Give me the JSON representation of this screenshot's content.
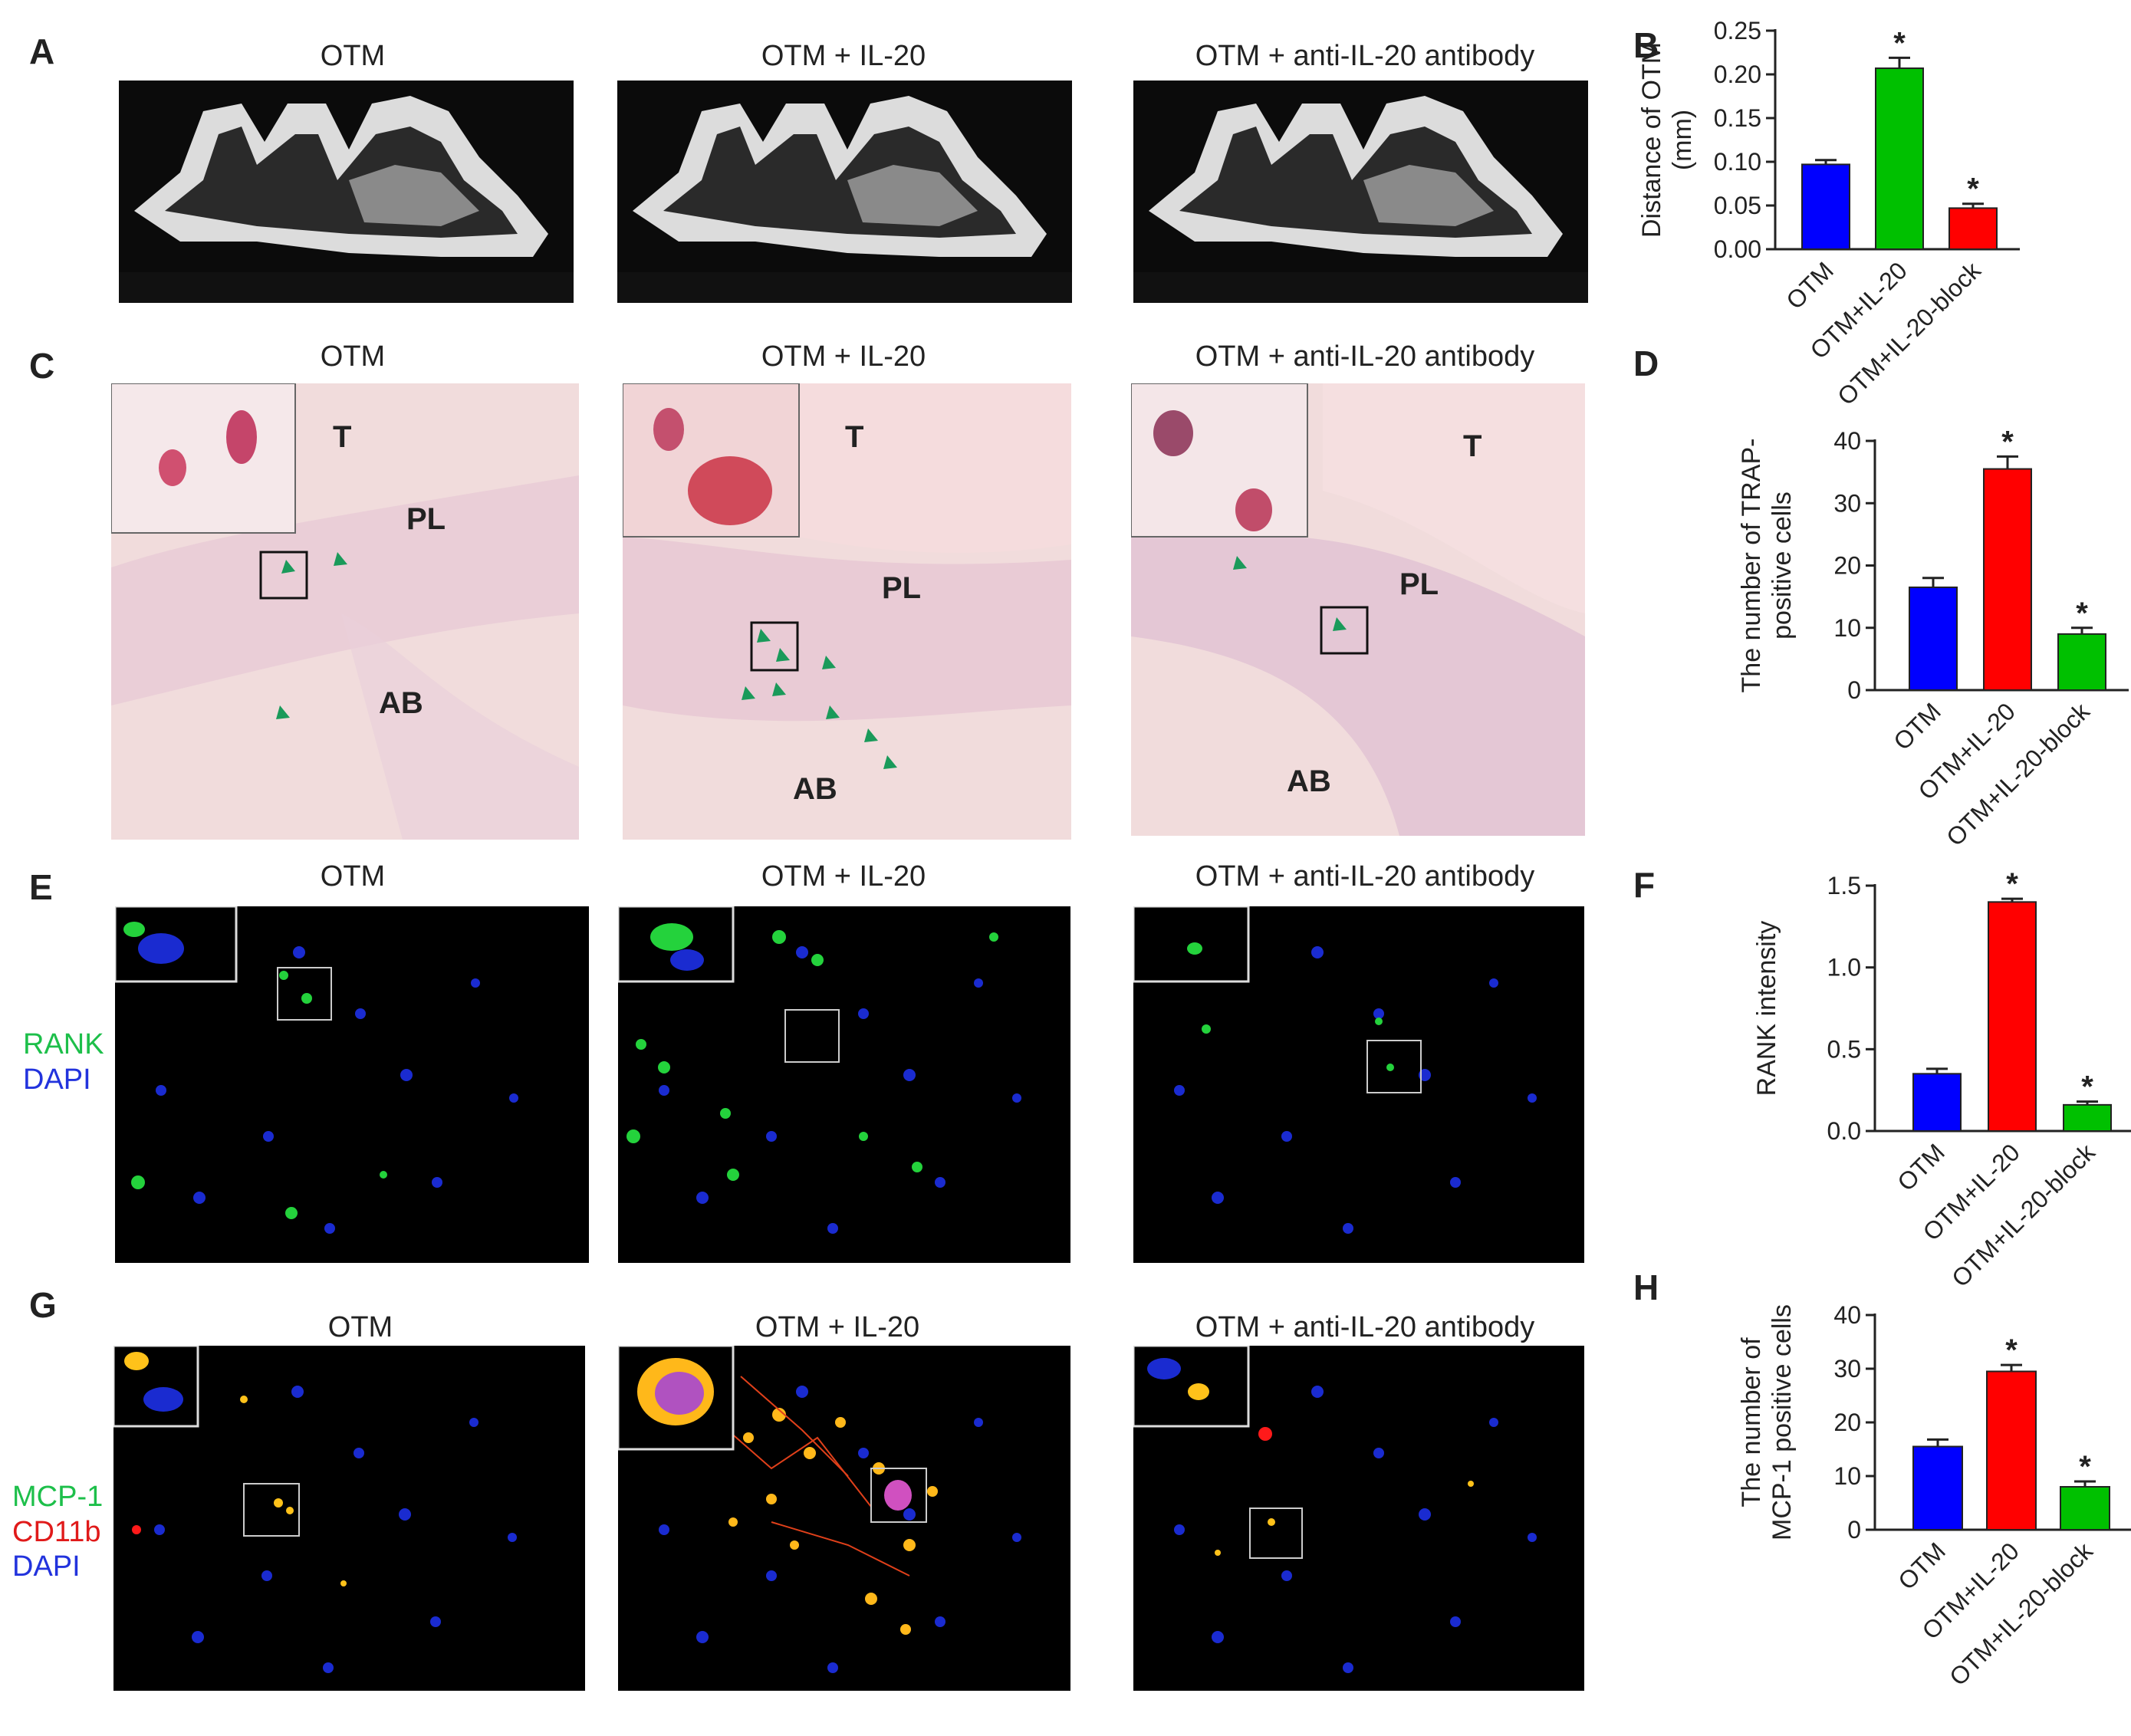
{
  "panels": {
    "A": {
      "letter": "A",
      "titles": [
        "OTM",
        "OTM + IL-20",
        "OTM + anti-IL-20 antibody"
      ]
    },
    "C": {
      "letter": "C",
      "titles": [
        "OTM",
        "OTM + IL-20",
        "OTM + anti-IL-20 antibody"
      ],
      "regions": {
        "t": "T",
        "pl": "PL",
        "ab": "AB"
      }
    },
    "E": {
      "letter": "E",
      "titles": [
        "OTM",
        "OTM + IL-20",
        "OTM + anti-IL-20 antibody"
      ],
      "stains": [
        {
          "text": "RANK",
          "color": "#1dbf4a"
        },
        {
          "text": "DAPI",
          "color": "#2233dd"
        }
      ]
    },
    "G": {
      "letter": "G",
      "titles": [
        "OTM",
        "OTM + IL-20",
        "OTM + anti-IL-20 antibody"
      ],
      "stains": [
        {
          "text": "MCP-1",
          "color": "#1dbf4a"
        },
        {
          "text": "CD11b",
          "color": "#e01a1a"
        },
        {
          "text": "DAPI",
          "color": "#2233dd"
        }
      ]
    }
  },
  "colors": {
    "blue": "#0000ff",
    "green": "#00c000",
    "red": "#ff0000"
  },
  "chart_data": [
    {
      "letter": "B",
      "type": "bar",
      "categories": [
        "OTM",
        "OTM+IL-20",
        "OTM+IL-20-block"
      ],
      "values": [
        0.097,
        0.207,
        0.047
      ],
      "errors": [
        0.005,
        0.012,
        0.005
      ],
      "colors": [
        "#0000ff",
        "#00c000",
        "#ff0000"
      ],
      "significant": [
        false,
        true,
        true
      ],
      "ylabel": "Distance of OTM\n(mm)",
      "ylim": [
        0,
        0.25
      ],
      "yticks": [
        "0.00",
        "0.05",
        "0.10",
        "0.15",
        "0.20",
        "0.25"
      ]
    },
    {
      "letter": "D",
      "type": "bar",
      "categories": [
        "OTM",
        "OTM+IL-20",
        "OTM+IL-20-block"
      ],
      "values": [
        16.5,
        35.5,
        9.0
      ],
      "errors": [
        1.5,
        2.0,
        1.0
      ],
      "colors": [
        "#0000ff",
        "#ff0000",
        "#00c000"
      ],
      "significant": [
        false,
        true,
        true
      ],
      "ylabel": "The number of TRAP-\npositive cells",
      "ylim": [
        0,
        40
      ],
      "yticks": [
        "0",
        "10",
        "20",
        "30",
        "40"
      ]
    },
    {
      "letter": "F",
      "type": "bar",
      "categories": [
        "OTM",
        "OTM+IL-20",
        "OTM+IL-20-block"
      ],
      "values": [
        0.35,
        1.4,
        0.16
      ],
      "errors": [
        0.03,
        0.02,
        0.02
      ],
      "colors": [
        "#0000ff",
        "#ff0000",
        "#00c000"
      ],
      "significant": [
        false,
        true,
        true
      ],
      "ylabel": "RANK intensity",
      "ylim": [
        0,
        1.5
      ],
      "yticks": [
        "0.0",
        "0.5",
        "1.0",
        "1.5"
      ]
    },
    {
      "letter": "H",
      "type": "bar",
      "categories": [
        "OTM",
        "OTM+IL-20",
        "OTM+IL-20-block"
      ],
      "values": [
        15.5,
        29.5,
        8.0
      ],
      "errors": [
        1.3,
        1.2,
        1.0
      ],
      "colors": [
        "#0000ff",
        "#ff0000",
        "#00c000"
      ],
      "significant": [
        false,
        true,
        true
      ],
      "ylabel": "The number of\nMCP-1 positive  cells",
      "ylim": [
        0,
        40
      ],
      "yticks": [
        "0",
        "10",
        "20",
        "30",
        "40"
      ]
    }
  ]
}
